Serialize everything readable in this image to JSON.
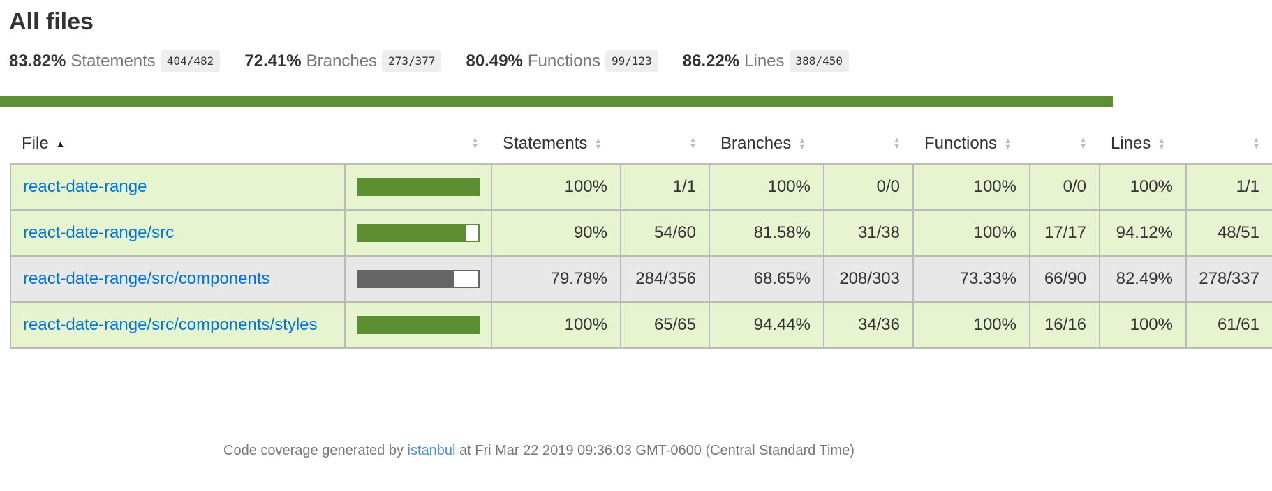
{
  "page": {
    "title": "All files"
  },
  "summary": {
    "statements": {
      "pct": "83.82%",
      "label": "Statements",
      "fraction": "404/482"
    },
    "branches": {
      "pct": "72.41%",
      "label": "Branches",
      "fraction": "273/377"
    },
    "functions": {
      "pct": "80.49%",
      "label": "Functions",
      "fraction": "99/123"
    },
    "lines": {
      "pct": "86.22%",
      "label": "Lines",
      "fraction": "388/450"
    }
  },
  "colors": {
    "high": "#5d8f32",
    "high_bg": "#e6f5d0",
    "medium": "#666666",
    "medium_bg": "#e8e8e8",
    "link": "#0074d9"
  },
  "table": {
    "headers": {
      "file": "File",
      "statements": "Statements",
      "branches": "Branches",
      "functions": "Functions",
      "lines": "Lines"
    },
    "sort_icon": "sort-ascending-icon",
    "rows": [
      {
        "file": "react-date-range",
        "status": "high",
        "coverage_fraction": 1.0,
        "statements_pct": "100%",
        "statements_frac": "1/1",
        "branches_pct": "100%",
        "branches_frac": "0/0",
        "functions_pct": "100%",
        "functions_frac": "0/0",
        "lines_pct": "100%",
        "lines_frac": "1/1"
      },
      {
        "file": "react-date-range/src",
        "status": "high",
        "coverage_fraction": 0.9,
        "statements_pct": "90%",
        "statements_frac": "54/60",
        "branches_pct": "81.58%",
        "branches_frac": "31/38",
        "functions_pct": "100%",
        "functions_frac": "17/17",
        "lines_pct": "94.12%",
        "lines_frac": "48/51"
      },
      {
        "file": "react-date-range/src/components",
        "status": "medium",
        "coverage_fraction": 0.7978,
        "statements_pct": "79.78%",
        "statements_frac": "284/356",
        "branches_pct": "68.65%",
        "branches_frac": "208/303",
        "functions_pct": "73.33%",
        "functions_frac": "66/90",
        "lines_pct": "82.49%",
        "lines_frac": "278/337"
      },
      {
        "file": "react-date-range/src/components/styles",
        "status": "high",
        "coverage_fraction": 1.0,
        "statements_pct": "100%",
        "statements_frac": "65/65",
        "branches_pct": "94.44%",
        "branches_frac": "34/36",
        "functions_pct": "100%",
        "functions_frac": "16/16",
        "lines_pct": "100%",
        "lines_frac": "61/61"
      }
    ]
  },
  "footer": {
    "prefix": "Code coverage generated by",
    "link_text": "istanbul",
    "suffix": "at Fri Mar 22 2019 09:36:03 GMT-0600 (Central Standard Time)"
  }
}
